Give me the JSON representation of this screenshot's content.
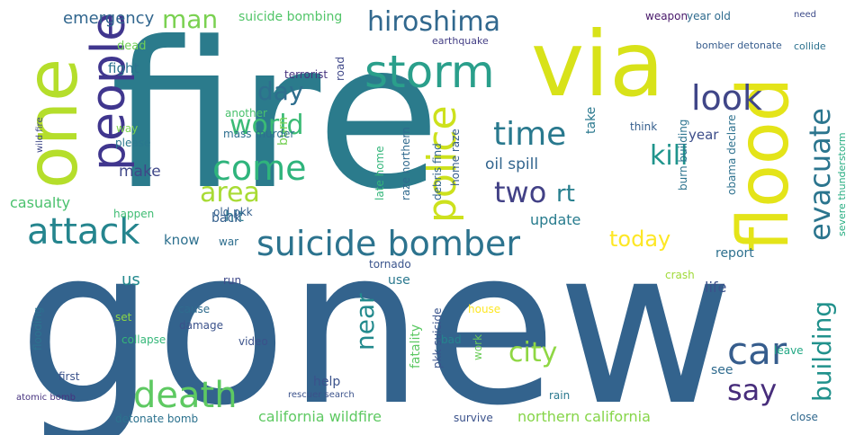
{
  "words": [
    {
      "text": "fire",
      "color": "#2b7b8c",
      "rot": 0
    },
    {
      "text": "gonew",
      "color": "#33638d",
      "rot": 0
    },
    {
      "text": "via",
      "color": "#d8e219",
      "rot": 0
    },
    {
      "text": "one",
      "color": "#b5de2b",
      "rot": -90
    },
    {
      "text": "flood",
      "color": "#e4e419",
      "rot": -90
    },
    {
      "text": "storm",
      "color": "#2a9f8b",
      "rot": 0
    },
    {
      "text": "people",
      "color": "#40368e",
      "rot": -90
    },
    {
      "text": "attack",
      "color": "#25858e",
      "rot": 0
    },
    {
      "text": "suicide bomber",
      "color": "#2c738e",
      "rot": 0
    },
    {
      "text": "death",
      "color": "#5ec962",
      "rot": 0
    },
    {
      "text": "car",
      "color": "#365d8d",
      "rot": 0
    },
    {
      "text": "police",
      "color": "#cde11d",
      "rot": -90
    },
    {
      "text": "hiroshima",
      "color": "#31688e",
      "rot": 0
    },
    {
      "text": "look",
      "color": "#404688",
      "rot": 0
    },
    {
      "text": "evacuate",
      "color": "#2b758e",
      "rot": -90
    },
    {
      "text": "time",
      "color": "#29798e",
      "rot": 0
    },
    {
      "text": "come",
      "color": "#2fb47c",
      "rot": 0
    },
    {
      "text": "world",
      "color": "#3bbb75",
      "rot": 0
    },
    {
      "text": "say",
      "color": "#472d7b",
      "rot": 0
    },
    {
      "text": "building",
      "color": "#21918c",
      "rot": -90
    },
    {
      "text": "city",
      "color": "#8fd744",
      "rot": 0
    },
    {
      "text": "man",
      "color": "#7ad151",
      "rot": 0
    },
    {
      "text": "near",
      "color": "#238a8d",
      "rot": -90
    },
    {
      "text": "kill",
      "color": "#1f948c",
      "rot": 0
    },
    {
      "text": "area",
      "color": "#a8db34",
      "rot": 0
    },
    {
      "text": "two",
      "color": "#424186",
      "rot": 0
    },
    {
      "text": "day",
      "color": "#2e6e8e",
      "rot": 0
    },
    {
      "text": "today",
      "color": "#fde725",
      "rot": 0
    },
    {
      "text": "rt",
      "color": "#277f8e",
      "rot": 0
    },
    {
      "text": "emergency",
      "color": "#31668e",
      "rot": 0
    },
    {
      "text": "suicide bombing",
      "color": "#52c569",
      "rot": 0
    },
    {
      "text": "weapon",
      "color": "#48186a",
      "rot": 0
    },
    {
      "text": "year old",
      "color": "#2f6b8e",
      "rot": 0
    },
    {
      "text": "need",
      "color": "#3e4c8a",
      "rot": 0
    },
    {
      "text": "collide",
      "color": "#2c718e",
      "rot": 0
    },
    {
      "text": "earthquake",
      "color": "#433e85",
      "rot": 0
    },
    {
      "text": "bomber detonate",
      "color": "#365c8d",
      "rot": 0
    },
    {
      "text": "dead",
      "color": "#70cf57",
      "rot": 0
    },
    {
      "text": "fight",
      "color": "#2c728e",
      "rot": 0
    },
    {
      "text": "terrorist",
      "color": "#46327e",
      "rot": 0
    },
    {
      "text": "road",
      "color": "#3f4889",
      "rot": -90
    },
    {
      "text": "oil spill",
      "color": "#32658e",
      "rot": 0
    },
    {
      "text": "update",
      "color": "#287c8e",
      "rot": 0
    },
    {
      "text": "make",
      "color": "#3f4788",
      "rot": 0
    },
    {
      "text": "hit",
      "color": "#2a788e",
      "rot": 0
    },
    {
      "text": "burn",
      "color": "#75d054",
      "rot": -90
    },
    {
      "text": "another",
      "color": "#4ac16d",
      "rot": 0
    },
    {
      "text": "mass murder",
      "color": "#2e6f8e",
      "rot": 0
    },
    {
      "text": "please",
      "color": "#2a778e",
      "rot": 0
    },
    {
      "text": "way",
      "color": "#7fd34e",
      "rot": 0
    },
    {
      "text": "year",
      "color": "#3d4e8a",
      "rot": 0
    },
    {
      "text": "take",
      "color": "#2a788e",
      "rot": -90
    },
    {
      "text": "think",
      "color": "#355f8d",
      "rot": 0
    },
    {
      "text": "late home",
      "color": "#33b67a",
      "rot": -90
    },
    {
      "text": "raze northern",
      "color": "#306a8e",
      "rot": -90
    },
    {
      "text": "debris find",
      "color": "#32658e",
      "rot": -90
    },
    {
      "text": "burn building",
      "color": "#2c738e",
      "rot": -90
    },
    {
      "text": "obama declare",
      "color": "#2d718e",
      "rot": -90
    },
    {
      "text": "severe thunderstorm",
      "color": "#26ad81",
      "rot": -90
    },
    {
      "text": "casualty",
      "color": "#4ac16d",
      "rot": 0
    },
    {
      "text": "happen",
      "color": "#3fbc73",
      "rot": 0
    },
    {
      "text": "old pkk",
      "color": "#34608d",
      "rot": 0
    },
    {
      "text": "know",
      "color": "#2d708e",
      "rot": 0
    },
    {
      "text": "war",
      "color": "#2e6e8e",
      "rot": 0
    },
    {
      "text": "back",
      "color": "#35608d",
      "rot": 0
    },
    {
      "text": "report",
      "color": "#2d708e",
      "rot": 0
    },
    {
      "text": "home raze",
      "color": "#365d8d",
      "rot": -90
    },
    {
      "text": "crash",
      "color": "#a0da39",
      "rot": 0
    },
    {
      "text": "us",
      "color": "#23898e",
      "rot": 0
    },
    {
      "text": "life",
      "color": "#3b518b",
      "rot": 0
    },
    {
      "text": "run",
      "color": "#3e4989",
      "rot": 0
    },
    {
      "text": "use",
      "color": "#2a788e",
      "rot": 0
    },
    {
      "text": "tornado",
      "color": "#3a548c",
      "rot": 0
    },
    {
      "text": "set",
      "color": "#8bd646",
      "rot": 0
    },
    {
      "text": "cause",
      "color": "#2f6c8e",
      "rot": 0
    },
    {
      "text": "damage",
      "color": "#3b528b",
      "rot": 0
    },
    {
      "text": "collapse",
      "color": "#35b779",
      "rot": 0
    },
    {
      "text": "house",
      "color": "#fde725",
      "rot": 0
    },
    {
      "text": "flooding",
      "color": "#2c728e",
      "rot": -90
    },
    {
      "text": "wild fire",
      "color": "#3f4889",
      "rot": -90
    },
    {
      "text": "video",
      "color": "#3b528b",
      "rot": 0
    },
    {
      "text": "bad",
      "color": "#25848e",
      "rot": 0
    },
    {
      "text": "fatality",
      "color": "#5cc863",
      "rot": -90
    },
    {
      "text": "pkk suicide",
      "color": "#3a548c",
      "rot": -90
    },
    {
      "text": "work",
      "color": "#6ccd5a",
      "rot": -90
    },
    {
      "text": "see",
      "color": "#2f6b8e",
      "rot": 0
    },
    {
      "text": "leave",
      "color": "#22a884",
      "rot": 0
    },
    {
      "text": "first",
      "color": "#3b528b",
      "rot": 0
    },
    {
      "text": "rescuer search",
      "color": "#3b528b",
      "rot": 0
    },
    {
      "text": "help",
      "color": "#3b528b",
      "rot": 0
    },
    {
      "text": "rain",
      "color": "#2a788e",
      "rot": 0
    },
    {
      "text": "california wildfire",
      "color": "#5ec962",
      "rot": 0
    },
    {
      "text": "survive",
      "color": "#3b528b",
      "rot": 0
    },
    {
      "text": "northern california",
      "color": "#86d549",
      "rot": 0
    },
    {
      "text": "close",
      "color": "#31688e",
      "rot": 0
    },
    {
      "text": "detonate bomb",
      "color": "#2c728e",
      "rot": 0
    },
    {
      "text": "atomic bomb",
      "color": "#46337f",
      "rot": 0
    }
  ]
}
